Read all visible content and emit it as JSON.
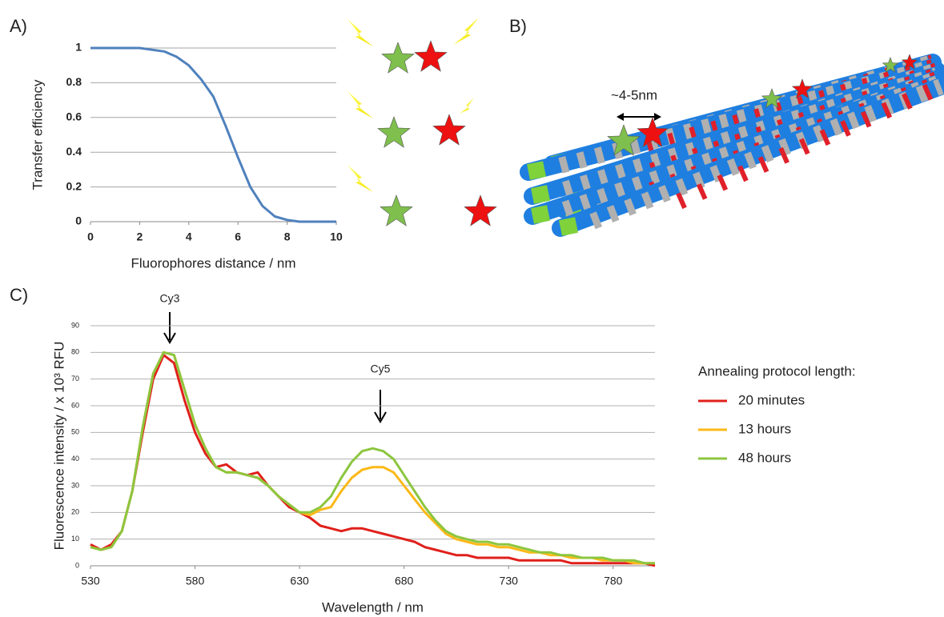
{
  "panel_labels": [
    "A)",
    "B)",
    "C)"
  ],
  "diagram": {
    "distance_label": "~4-5nm"
  },
  "annotations": [
    "Cy3",
    "Cy5"
  ],
  "chart_data": [
    {
      "type": "line",
      "x_label": "Fluorophores distance / nm",
      "y_label": "Transfer efficiency",
      "x": [
        0,
        0.5,
        1,
        1.5,
        2,
        2.5,
        3,
        3.5,
        4,
        4.5,
        5,
        5.5,
        6,
        6.5,
        7,
        7.5,
        8,
        8.5,
        9,
        9.5,
        10
      ],
      "values": [
        1,
        1,
        1,
        1,
        1,
        0.99,
        0.98,
        0.95,
        0.9,
        0.82,
        0.72,
        0.55,
        0.37,
        0.2,
        0.09,
        0.03,
        0.01,
        0,
        0,
        0,
        0
      ],
      "color": "#4f81bd",
      "xlim": [
        0,
        10
      ],
      "xticks": [
        0,
        2,
        4,
        6,
        8,
        10
      ],
      "ylim": [
        0,
        1
      ],
      "yticks": [
        0,
        0.2,
        0.4,
        0.6,
        0.8,
        1
      ],
      "grid": true
    },
    {
      "type": "line",
      "x_label": "Wavelength / nm",
      "y_label": "Fluorescence intensity  / x 10³ RFU",
      "legend_title": "Annealing protocol length:",
      "x": [
        530,
        535,
        540,
        545,
        550,
        555,
        560,
        565,
        570,
        575,
        580,
        585,
        590,
        595,
        600,
        605,
        610,
        615,
        620,
        625,
        630,
        635,
        640,
        645,
        650,
        655,
        660,
        665,
        670,
        675,
        680,
        685,
        690,
        695,
        700,
        705,
        710,
        715,
        720,
        725,
        730,
        735,
        740,
        745,
        750,
        755,
        760,
        765,
        770,
        775,
        780,
        785,
        790,
        795,
        800
      ],
      "series": [
        {
          "name": "20 minutes",
          "color": "#e0201b",
          "values": [
            8,
            6,
            8,
            13,
            28,
            50,
            70,
            79,
            76,
            62,
            50,
            42,
            37,
            38,
            35,
            34,
            35,
            30,
            26,
            22,
            20,
            18,
            15,
            14,
            13,
            14,
            14,
            13,
            12,
            11,
            10,
            9,
            7,
            6,
            5,
            4,
            4,
            3,
            3,
            3,
            3,
            2,
            2,
            2,
            2,
            2,
            1,
            1,
            1,
            1,
            1,
            1,
            1,
            1,
            0
          ]
        },
        {
          "name": "13 hours",
          "color": "#fbb917",
          "values": [
            7,
            6,
            7,
            13,
            28,
            52,
            72,
            80,
            79,
            66,
            53,
            44,
            37,
            35,
            35,
            34,
            33,
            30,
            26,
            23,
            20,
            19,
            21,
            22,
            28,
            33,
            36,
            37,
            37,
            35,
            30,
            25,
            20,
            16,
            12,
            10,
            9,
            8,
            8,
            7,
            7,
            6,
            5,
            5,
            4,
            4,
            3,
            3,
            3,
            2,
            2,
            2,
            1,
            1,
            1
          ]
        },
        {
          "name": "48 hours",
          "color": "#8cc63f",
          "values": [
            7,
            6,
            7,
            13,
            28,
            52,
            72,
            80,
            79,
            66,
            53,
            44,
            37,
            35,
            35,
            34,
            33,
            30,
            26,
            23,
            20,
            20,
            22,
            26,
            33,
            39,
            43,
            44,
            43,
            40,
            34,
            28,
            22,
            17,
            13,
            11,
            10,
            9,
            9,
            8,
            8,
            7,
            6,
            5,
            5,
            4,
            4,
            3,
            3,
            3,
            2,
            2,
            2,
            1,
            1
          ]
        }
      ],
      "xlim": [
        530,
        800
      ],
      "xticks": [
        530,
        580,
        630,
        680,
        730,
        780
      ],
      "ylim": [
        0,
        90
      ],
      "yticks": [
        0,
        10,
        20,
        30,
        40,
        50,
        60,
        70,
        80,
        90
      ],
      "grid": true
    }
  ]
}
